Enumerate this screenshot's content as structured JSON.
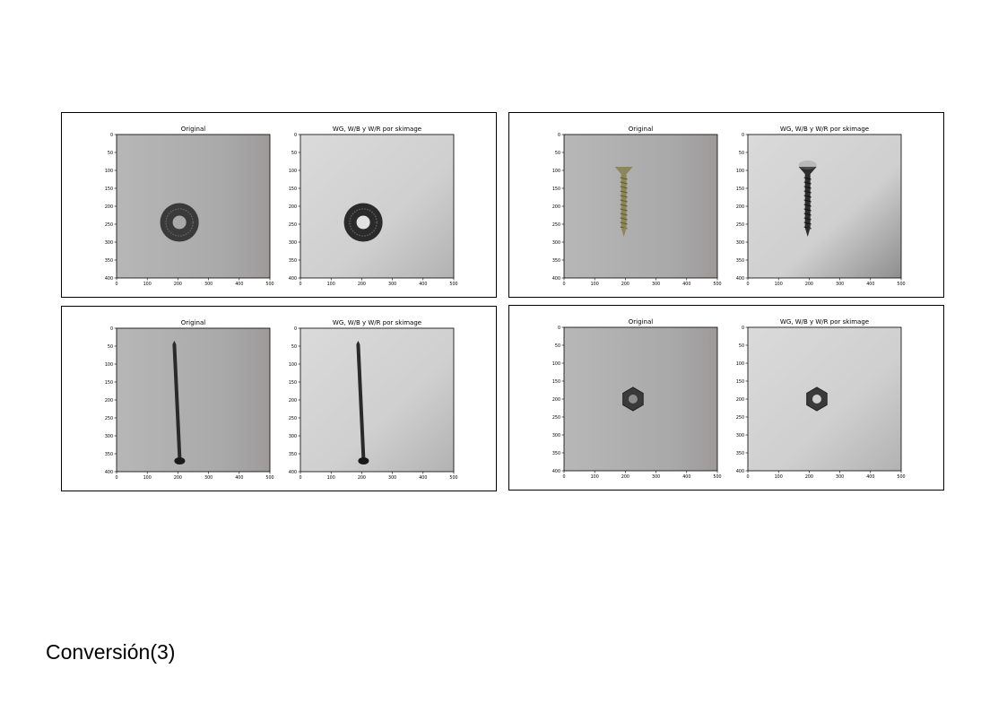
{
  "panels": [
    {
      "object": "washer",
      "left_title": "Original",
      "right_title": "WG, W/B y W/R por skimage"
    },
    {
      "object": "screw",
      "left_title": "Original",
      "right_title": "WG, W/B y W/R por skimage"
    },
    {
      "object": "nail",
      "left_title": "Original",
      "right_title": "WG, W/B y W/R por skimage"
    },
    {
      "object": "nut",
      "left_title": "Original",
      "right_title": "WG, W/B y W/R por skimage"
    }
  ],
  "axes": {
    "x_ticks": [
      "0",
      "100",
      "200",
      "300",
      "400",
      "500"
    ],
    "y_ticks": [
      "0",
      "50",
      "100",
      "150",
      "200",
      "250",
      "300",
      "350",
      "400"
    ]
  },
  "footer": {
    "label": "Conversión(3)"
  }
}
